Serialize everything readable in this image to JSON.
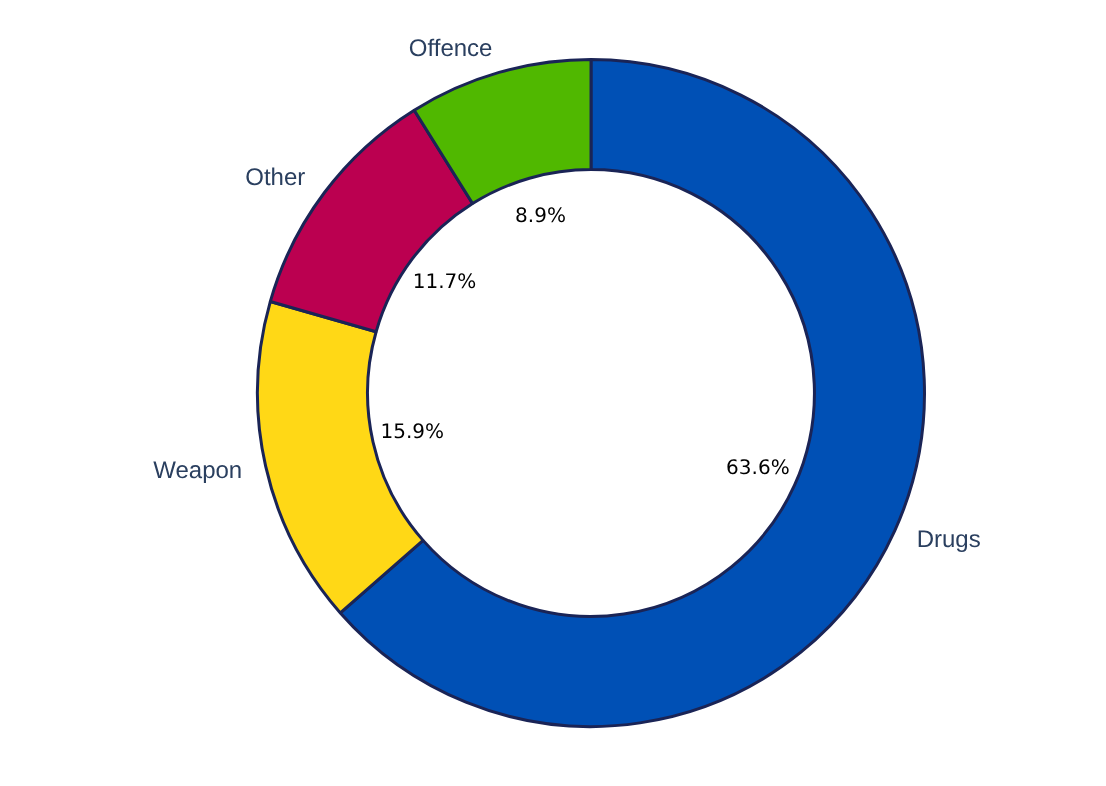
{
  "chart_data": {
    "type": "donut",
    "categories": [
      "Drugs",
      "Weapon",
      "Other",
      "Offence"
    ],
    "values": [
      63.6,
      15.9,
      11.7,
      8.9
    ],
    "colors": [
      "#0050b5",
      "#ffd816",
      "#bb0050",
      "#50b800"
    ],
    "value_labels": [
      "63.6%",
      "15.9%",
      "11.7%",
      "8.9%"
    ],
    "legend": false
  }
}
